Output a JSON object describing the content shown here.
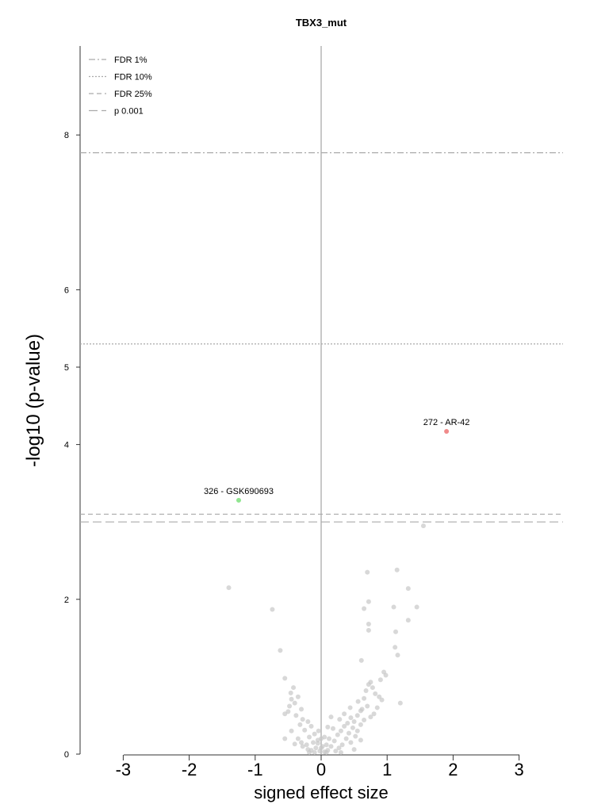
{
  "chart_data": {
    "type": "scatter",
    "title": "TBX3_mut",
    "xlabel": "signed effect size",
    "ylabel": "-log10 (p-value)",
    "xlim": [
      -3.6,
      3.65
    ],
    "ylim": [
      0,
      9.1
    ],
    "x_ticks": [
      -3,
      -2,
      -1,
      0,
      1,
      2,
      3
    ],
    "y_ticks": [
      0,
      2,
      4,
      5,
      6,
      8
    ],
    "grid": false,
    "legend_position": "top-left",
    "thresholds": [
      {
        "name": "FDR 1%",
        "y": 7.77,
        "style": "dashdot",
        "color": "#aaaaaa"
      },
      {
        "name": "FDR 10%",
        "y": 5.3,
        "style": "dotted",
        "color": "#aaaaaa"
      },
      {
        "name": "FDR 25%",
        "y": 3.1,
        "style": "dashed",
        "color": "#aaaaaa"
      },
      {
        "name": "p 0.001",
        "y": 3.0,
        "style": "longdash",
        "color": "#aaaaaa"
      }
    ],
    "highlighted_points": [
      {
        "label": "272 - AR-42",
        "x": 1.9,
        "y": 4.17,
        "color": "#f08a8a"
      },
      {
        "label": "326 - GSK690693",
        "x": -1.25,
        "y": 3.28,
        "color": "#8fe58f"
      }
    ],
    "background_color": "#c8c8c8",
    "points": [
      [
        1.55,
        2.95
      ],
      [
        -1.4,
        2.15
      ],
      [
        0.7,
        2.35
      ],
      [
        1.15,
        2.38
      ],
      [
        1.32,
        2.14
      ],
      [
        -0.74,
        1.87
      ],
      [
        0.65,
        1.88
      ],
      [
        0.72,
        1.97
      ],
      [
        1.1,
        1.9
      ],
      [
        1.45,
        1.9
      ],
      [
        1.32,
        1.73
      ],
      [
        0.72,
        1.6
      ],
      [
        0.72,
        1.68
      ],
      [
        1.13,
        1.58
      ],
      [
        1.12,
        1.38
      ],
      [
        1.16,
        1.28
      ],
      [
        -0.62,
        1.34
      ],
      [
        0.61,
        1.21
      ],
      [
        -0.55,
        0.98
      ],
      [
        0.95,
        1.06
      ],
      [
        0.98,
        1.02
      ],
      [
        0.9,
        0.96
      ],
      [
        0.75,
        0.93
      ],
      [
        0.72,
        0.9
      ],
      [
        0.78,
        0.86
      ],
      [
        0.68,
        0.82
      ],
      [
        0.82,
        0.78
      ],
      [
        0.88,
        0.74
      ],
      [
        0.65,
        0.72
      ],
      [
        0.92,
        0.7
      ],
      [
        1.2,
        0.66
      ],
      [
        0.7,
        0.62
      ],
      [
        0.85,
        0.6
      ],
      [
        0.6,
        0.56
      ],
      [
        0.8,
        0.52
      ],
      [
        0.55,
        0.5
      ],
      [
        0.75,
        0.48
      ],
      [
        0.45,
        0.47
      ],
      [
        0.65,
        0.44
      ],
      [
        0.5,
        0.42
      ],
      [
        0.4,
        0.4
      ],
      [
        0.6,
        0.38
      ],
      [
        0.35,
        0.36
      ],
      [
        0.48,
        0.34
      ],
      [
        0.55,
        0.3
      ],
      [
        0.3,
        0.3
      ],
      [
        0.42,
        0.27
      ],
      [
        0.25,
        0.25
      ],
      [
        0.52,
        0.23
      ],
      [
        0.38,
        0.2
      ],
      [
        0.6,
        0.18
      ],
      [
        0.2,
        0.17
      ],
      [
        0.45,
        0.15
      ],
      [
        0.32,
        0.12
      ],
      [
        0.15,
        0.1
      ],
      [
        0.27,
        0.08
      ],
      [
        0.5,
        0.06
      ],
      [
        0.1,
        0.05
      ],
      [
        0.22,
        0.04
      ],
      [
        0.05,
        0.03
      ],
      [
        0.08,
        0.12
      ],
      [
        0.12,
        0.2
      ],
      [
        0.35,
        0.52
      ],
      [
        0.28,
        0.45
      ],
      [
        0.18,
        0.33
      ],
      [
        0.56,
        0.68
      ],
      [
        0.62,
        0.58
      ],
      [
        0.44,
        0.6
      ],
      [
        0.02,
        0.1
      ],
      [
        0.0,
        0.08
      ],
      [
        -0.42,
        0.86
      ],
      [
        -0.46,
        0.79
      ],
      [
        -0.45,
        0.71
      ],
      [
        -0.48,
        0.62
      ],
      [
        -0.35,
        0.74
      ],
      [
        -0.4,
        0.66
      ],
      [
        -0.3,
        0.58
      ],
      [
        -0.5,
        0.55
      ],
      [
        -0.38,
        0.5
      ],
      [
        -0.55,
        0.52
      ],
      [
        -0.28,
        0.45
      ],
      [
        -0.2,
        0.42
      ],
      [
        -0.32,
        0.38
      ],
      [
        -0.15,
        0.36
      ],
      [
        -0.25,
        0.31
      ],
      [
        -0.45,
        0.3
      ],
      [
        -0.1,
        0.26
      ],
      [
        -0.18,
        0.22
      ],
      [
        -0.35,
        0.2
      ],
      [
        -0.05,
        0.18
      ],
      [
        -0.12,
        0.15
      ],
      [
        -0.22,
        0.12
      ],
      [
        -0.28,
        0.1
      ],
      [
        -0.08,
        0.08
      ],
      [
        -0.15,
        0.05
      ],
      [
        -0.02,
        0.04
      ],
      [
        -0.1,
        0.02
      ],
      [
        -0.05,
        0.14
      ],
      [
        -0.2,
        0.06
      ],
      [
        0.05,
        0.22
      ],
      [
        -0.55,
        0.2
      ],
      [
        -0.3,
        0.15
      ],
      [
        -0.4,
        0.13
      ],
      [
        0.15,
        0.48
      ],
      [
        0.0,
        0.2
      ],
      [
        -0.04,
        0.3
      ],
      [
        0.1,
        0.35
      ],
      [
        0.08,
        0.02
      ],
      [
        0.3,
        0.02
      ],
      [
        -0.18,
        0.02
      ]
    ]
  }
}
